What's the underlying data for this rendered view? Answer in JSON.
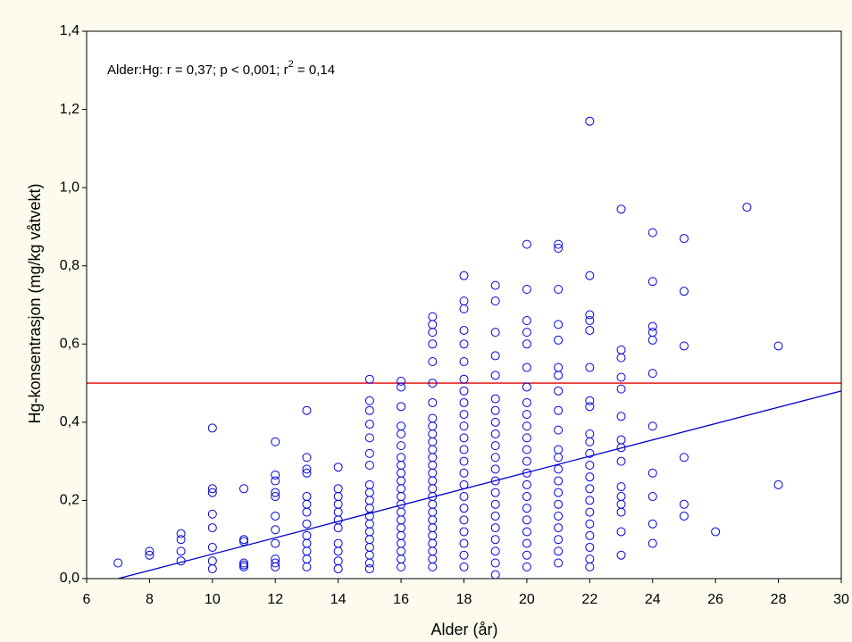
{
  "chart_data": {
    "type": "scatter",
    "title_parts": [
      "Alder:Hg:  r = 0,37; p < 0,001; r",
      "2",
      " = 0,14"
    ],
    "x_label": "Alder (år)",
    "y_label": "Hg-konsentrasjon (mg/kg våtvekt)",
    "color": "#0000dd",
    "x": [
      7,
      8,
      8,
      9,
      9,
      9,
      9,
      10,
      10,
      10,
      10,
      10,
      10,
      10,
      10,
      11,
      11,
      11,
      11,
      11,
      11,
      12,
      12,
      12,
      12,
      12,
      12,
      12,
      12,
      12,
      12,
      12,
      13,
      13,
      13,
      13,
      13,
      13,
      13,
      13,
      13,
      13,
      13,
      13,
      13,
      14,
      14,
      14,
      14,
      14,
      14,
      14,
      14,
      14,
      14,
      14,
      15,
      15,
      15,
      15,
      15,
      15,
      15,
      15,
      15,
      15,
      15,
      15,
      15,
      15,
      15,
      15,
      15,
      15,
      15,
      16,
      16,
      16,
      16,
      16,
      16,
      16,
      16,
      16,
      16,
      16,
      16,
      16,
      16,
      16,
      16,
      16,
      16,
      16,
      16,
      16,
      17,
      17,
      17,
      17,
      17,
      17,
      17,
      17,
      17,
      17,
      17,
      17,
      17,
      17,
      17,
      17,
      17,
      17,
      17,
      17,
      17,
      17,
      17,
      17,
      17,
      17,
      17,
      18,
      18,
      18,
      18,
      18,
      18,
      18,
      18,
      18,
      18,
      18,
      18,
      18,
      18,
      18,
      18,
      18,
      18,
      18,
      18,
      18,
      18,
      18,
      19,
      19,
      19,
      19,
      19,
      19,
      19,
      19,
      19,
      19,
      19,
      19,
      19,
      19,
      19,
      19,
      19,
      19,
      19,
      19,
      19,
      20,
      20,
      20,
      20,
      20,
      20,
      20,
      20,
      20,
      20,
      20,
      20,
      20,
      20,
      20,
      20,
      20,
      20,
      20,
      20,
      20,
      20,
      21,
      21,
      21,
      21,
      21,
      21,
      21,
      21,
      21,
      21,
      21,
      21,
      21,
      21,
      21,
      21,
      21,
      21,
      21,
      21,
      21,
      22,
      22,
      22,
      22,
      22,
      22,
      22,
      22,
      22,
      22,
      22,
      22,
      22,
      22,
      22,
      22,
      22,
      22,
      22,
      22,
      22,
      23,
      23,
      23,
      23,
      23,
      23,
      23,
      23,
      23,
      23,
      23,
      23,
      23,
      23,
      23,
      24,
      24,
      24,
      24,
      24,
      24,
      24,
      24,
      24,
      24,
      24,
      25,
      25,
      25,
      25,
      25,
      25,
      26,
      27,
      28,
      28
    ],
    "values": [
      0.04,
      0.06,
      0.07,
      0.045,
      0.07,
      0.1,
      0.115,
      0.025,
      0.045,
      0.08,
      0.13,
      0.165,
      0.22,
      0.23,
      0.385,
      0.03,
      0.035,
      0.04,
      0.095,
      0.1,
      0.23,
      0.03,
      0.04,
      0.05,
      0.09,
      0.125,
      0.16,
      0.21,
      0.22,
      0.25,
      0.265,
      0.35,
      0.03,
      0.05,
      0.07,
      0.09,
      0.11,
      0.14,
      0.17,
      0.19,
      0.21,
      0.27,
      0.28,
      0.31,
      0.43,
      0.025,
      0.045,
      0.07,
      0.09,
      0.13,
      0.15,
      0.17,
      0.19,
      0.21,
      0.23,
      0.285,
      0.025,
      0.04,
      0.06,
      0.08,
      0.1,
      0.12,
      0.14,
      0.16,
      0.18,
      0.2,
      0.22,
      0.24,
      0.29,
      0.32,
      0.36,
      0.395,
      0.43,
      0.455,
      0.51,
      0.03,
      0.05,
      0.07,
      0.09,
      0.11,
      0.13,
      0.15,
      0.17,
      0.19,
      0.21,
      0.23,
      0.25,
      0.27,
      0.29,
      0.31,
      0.34,
      0.37,
      0.39,
      0.44,
      0.49,
      0.505,
      0.03,
      0.05,
      0.07,
      0.09,
      0.11,
      0.13,
      0.15,
      0.17,
      0.19,
      0.21,
      0.23,
      0.25,
      0.27,
      0.29,
      0.31,
      0.33,
      0.35,
      0.37,
      0.39,
      0.41,
      0.45,
      0.5,
      0.555,
      0.6,
      0.63,
      0.65,
      0.67,
      0.03,
      0.06,
      0.09,
      0.12,
      0.15,
      0.18,
      0.21,
      0.24,
      0.27,
      0.3,
      0.33,
      0.36,
      0.39,
      0.42,
      0.45,
      0.48,
      0.51,
      0.555,
      0.6,
      0.635,
      0.69,
      0.71,
      0.775,
      0.01,
      0.04,
      0.07,
      0.1,
      0.13,
      0.16,
      0.19,
      0.22,
      0.25,
      0.28,
      0.31,
      0.34,
      0.37,
      0.4,
      0.43,
      0.46,
      0.52,
      0.57,
      0.63,
      0.71,
      0.75,
      0.03,
      0.06,
      0.09,
      0.12,
      0.15,
      0.18,
      0.21,
      0.24,
      0.27,
      0.3,
      0.33,
      0.36,
      0.39,
      0.42,
      0.45,
      0.49,
      0.54,
      0.6,
      0.63,
      0.66,
      0.74,
      0.855,
      0.04,
      0.07,
      0.1,
      0.13,
      0.16,
      0.19,
      0.22,
      0.25,
      0.28,
      0.31,
      0.33,
      0.38,
      0.43,
      0.48,
      0.52,
      0.54,
      0.61,
      0.65,
      0.74,
      0.845,
      0.855,
      0.03,
      0.05,
      0.08,
      0.11,
      0.14,
      0.17,
      0.2,
      0.23,
      0.26,
      0.29,
      0.32,
      0.35,
      0.37,
      0.44,
      0.455,
      0.54,
      0.635,
      0.66,
      0.675,
      0.775,
      1.17,
      0.06,
      0.12,
      0.17,
      0.19,
      0.21,
      0.235,
      0.3,
      0.335,
      0.355,
      0.415,
      0.485,
      0.515,
      0.565,
      0.585,
      0.945,
      0.09,
      0.14,
      0.21,
      0.27,
      0.39,
      0.525,
      0.61,
      0.63,
      0.645,
      0.76,
      0.885,
      0.16,
      0.19,
      0.31,
      0.595,
      0.735,
      0.87,
      0.12,
      0.95,
      0.24,
      0.595
    ],
    "fit_line": {
      "x": [
        7,
        30
      ],
      "values": [
        0,
        0.48
      ],
      "color": "#0000cc"
    },
    "reference_line": {
      "x": [
        6,
        30
      ],
      "values": [
        0.5,
        0.5
      ],
      "color": "#e00000"
    },
    "xlim": [
      6,
      30
    ],
    "xticks": [
      6,
      8,
      10,
      12,
      14,
      16,
      18,
      20,
      22,
      24,
      26,
      28,
      30
    ],
    "ylim": [
      0,
      1.4
    ],
    "yticks": [
      {
        "value": 0,
        "label": "0,0"
      },
      {
        "value": 0.2,
        "label": "0,2"
      },
      {
        "value": 0.4,
        "label": "0,4"
      },
      {
        "value": 0.6,
        "label": "0,6"
      },
      {
        "value": 0.8,
        "label": "0,8"
      },
      {
        "value": 1,
        "label": "1,0"
      },
      {
        "value": 1.2,
        "label": "1,2"
      },
      {
        "value": 1.4,
        "label": "1,4"
      }
    ],
    "grid": false
  }
}
